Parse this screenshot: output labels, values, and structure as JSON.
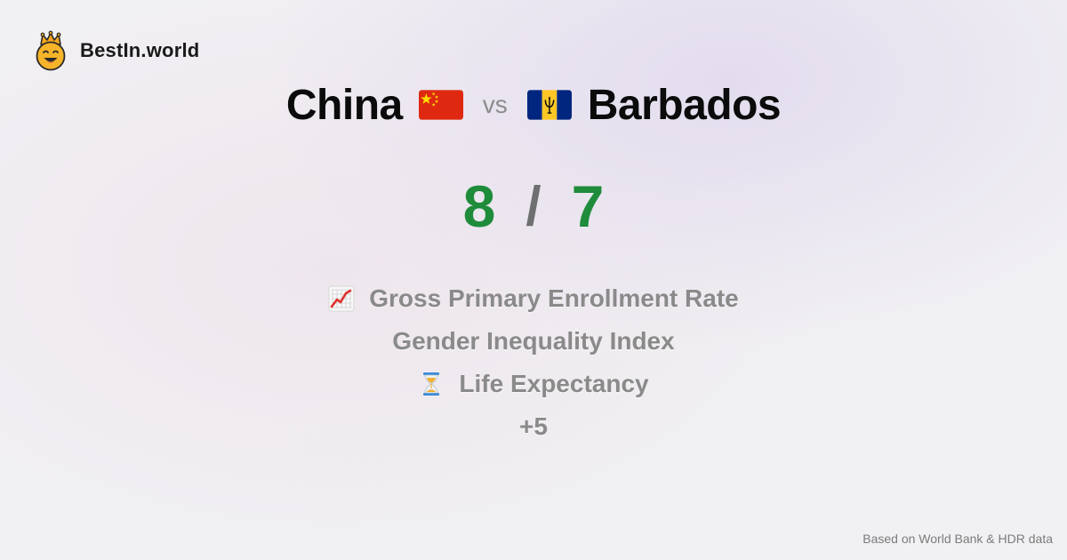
{
  "brand": {
    "name": "BestIn.world",
    "logo_icon": "crowned-smiley-icon"
  },
  "comparison": {
    "left": {
      "name": "China",
      "flag_icon": "china-flag-icon"
    },
    "vs_label": "vs",
    "right": {
      "name": "Barbados",
      "flag_icon": "barbados-flag-icon"
    }
  },
  "score": {
    "left": "8",
    "separator": "/",
    "right": "7"
  },
  "metrics": [
    {
      "label": "Gross Primary Enrollment Rate",
      "icon": "chart-increasing-icon"
    },
    {
      "label": "Gender Inequality Index",
      "icon": ""
    },
    {
      "label": "Life Expectancy",
      "icon": "hourglass-icon"
    },
    {
      "label": "+5",
      "icon": ""
    }
  ],
  "footer": {
    "source": "Based on World Bank & HDR data"
  },
  "colors": {
    "score_green": "#1f8c3b",
    "muted_text": "#8a8a8a",
    "title_text": "#0b0b0b"
  }
}
